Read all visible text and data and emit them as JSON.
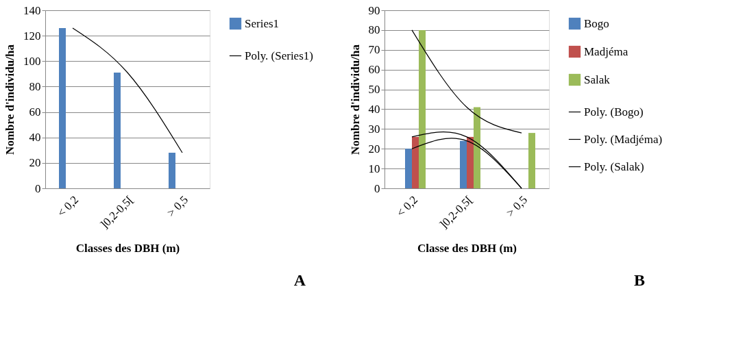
{
  "chart_data": [
    {
      "type": "bar",
      "xlabel": "Classes des DBH (m)",
      "ylabel": "Nombre d'individu/ha",
      "categories": [
        "< 0,2",
        "]0,2-0,5[",
        "> 0,5"
      ],
      "series": [
        {
          "name": "Series1",
          "color": "#4f81bd",
          "values": [
            126,
            91,
            28
          ]
        },
        {
          "name": "Poly. (Series1)",
          "type": "line",
          "color": "#000000",
          "values": [
            126,
            91,
            28
          ]
        }
      ],
      "ylim": [
        0,
        140
      ],
      "yticks": [
        0,
        20,
        40,
        60,
        80,
        100,
        120,
        140
      ],
      "grid": "y",
      "legend": "right",
      "annotations": [
        "A"
      ]
    },
    {
      "type": "bar",
      "xlabel": "Classe des DBH (m)",
      "ylabel": "Nombre d'individu/ha",
      "categories": [
        "< 0,2",
        "]0,2-0,5[",
        "> 0,5"
      ],
      "series": [
        {
          "name": "Bogo",
          "color": "#4f81bd",
          "values": [
            20,
            24,
            0
          ]
        },
        {
          "name": "Madjéma",
          "color": "#c0504d",
          "values": [
            26,
            26,
            0
          ]
        },
        {
          "name": "Salak",
          "color": "#9bbb59",
          "values": [
            80,
            41,
            28
          ]
        },
        {
          "name": "Poly. (Bogo)",
          "type": "line",
          "color": "#000000",
          "values": [
            20,
            24,
            0
          ]
        },
        {
          "name": "Poly. (Madjéma)",
          "type": "line",
          "color": "#000000",
          "values": [
            26,
            26,
            0
          ]
        },
        {
          "name": "Poly. (Salak)",
          "type": "line",
          "color": "#000000",
          "values": [
            80,
            41,
            28
          ]
        }
      ],
      "ylim": [
        0,
        90
      ],
      "yticks": [
        0,
        10,
        20,
        30,
        40,
        50,
        60,
        70,
        80,
        90
      ],
      "grid": "y",
      "legend": "right",
      "annotations": [
        "B"
      ]
    }
  ]
}
